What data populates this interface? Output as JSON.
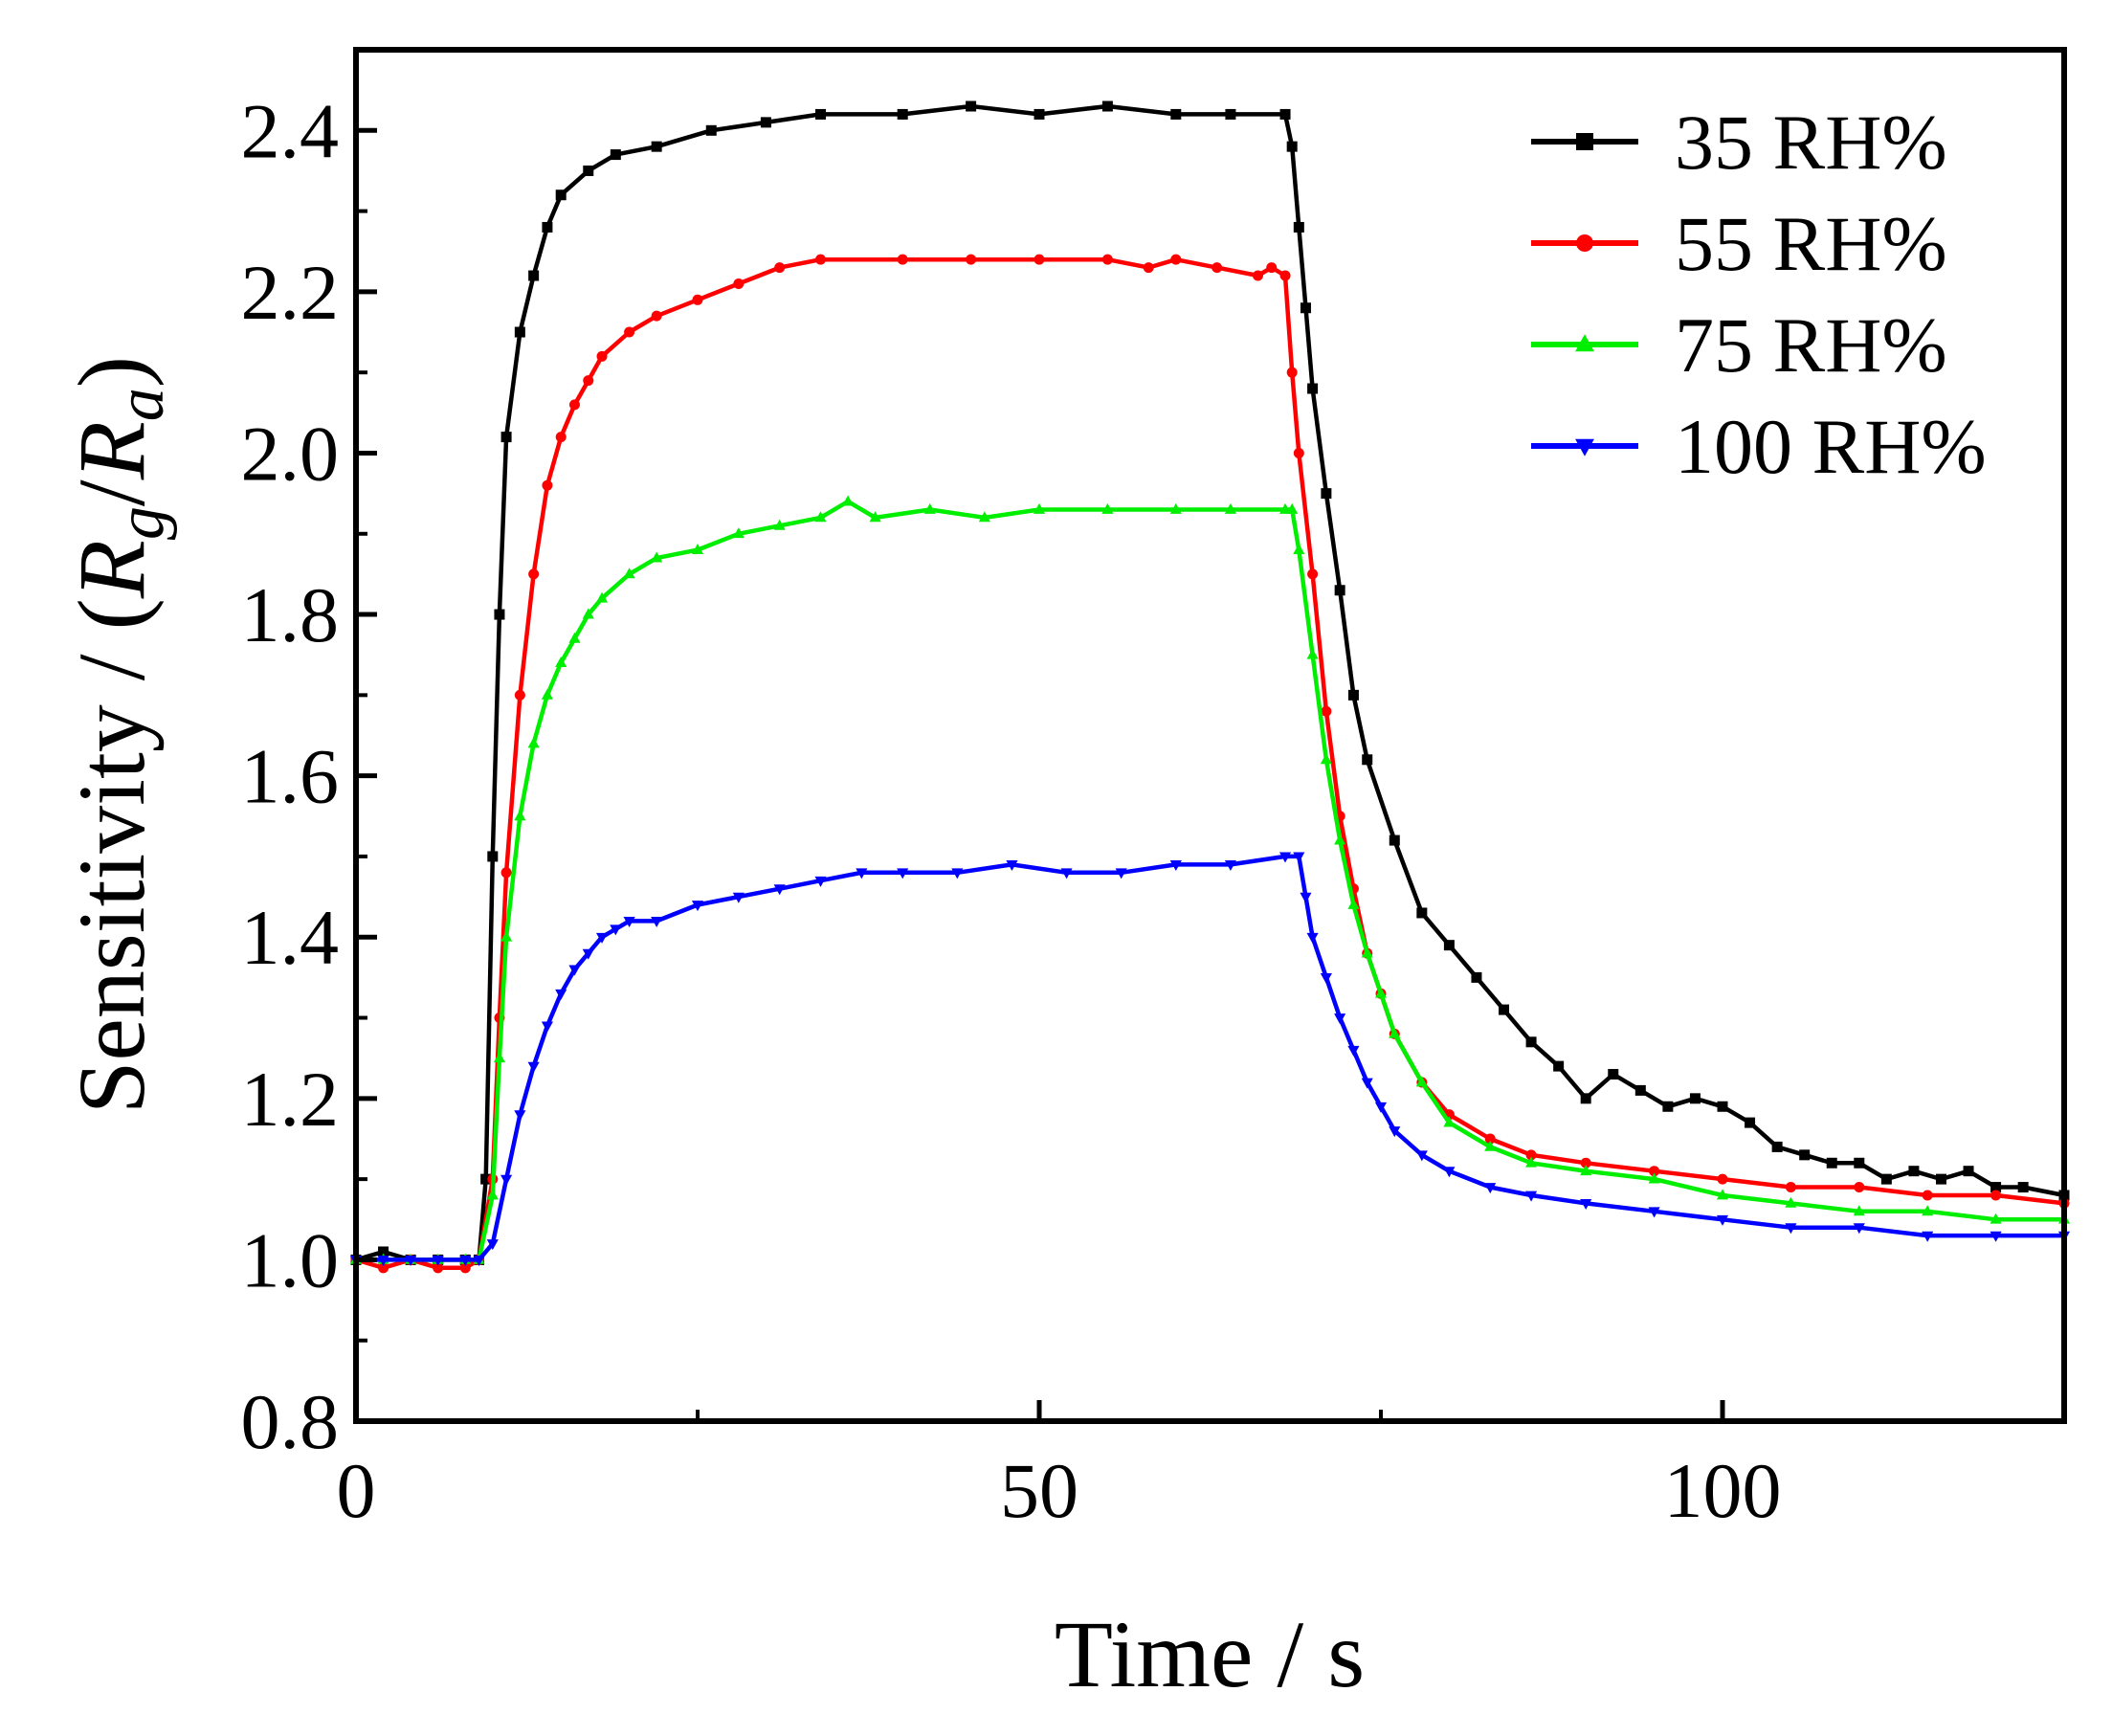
{
  "chart_data": {
    "type": "line",
    "title": "",
    "xlabel": "Time / s",
    "ylabel": {
      "prefix": "Sensitivity / (",
      "r1": "R",
      "sub1": "g",
      "slash": "/",
      "r2": "R",
      "sub2": "a",
      "suffix": ")"
    },
    "xlim": [
      0,
      125
    ],
    "ylim": [
      0.8,
      2.5
    ],
    "xticks": [
      "0",
      "50",
      "100"
    ],
    "xtick_values": [
      0,
      50,
      100
    ],
    "yticks": [
      "0.8",
      "1.0",
      "1.2",
      "1.4",
      "1.6",
      "1.8",
      "2.0",
      "2.2",
      "2.4"
    ],
    "ytick_values": [
      0.8,
      1.0,
      1.2,
      1.4,
      1.6,
      1.8,
      2.0,
      2.2,
      2.4
    ],
    "legend_position": "top-right",
    "series": [
      {
        "name": "35 RH%",
        "color": "#000000",
        "marker": "square",
        "x": [
          0,
          2,
          4,
          6,
          8,
          9,
          9.5,
          10,
          10.5,
          11,
          12,
          13,
          14,
          15,
          17,
          19,
          22,
          26,
          30,
          34,
          40,
          45,
          50,
          55,
          60,
          64,
          68,
          68.5,
          69,
          69.5,
          70,
          71,
          72,
          73,
          74,
          76,
          78,
          80,
          82,
          84,
          86,
          88,
          90,
          92,
          94,
          96,
          98,
          100,
          102,
          104,
          106,
          108,
          110,
          112,
          114,
          116,
          118,
          120,
          122,
          125
        ],
        "y": [
          1.0,
          1.01,
          1.0,
          1.0,
          1.0,
          1.0,
          1.1,
          1.5,
          1.8,
          2.02,
          2.15,
          2.22,
          2.28,
          2.32,
          2.35,
          2.37,
          2.38,
          2.4,
          2.41,
          2.42,
          2.42,
          2.43,
          2.42,
          2.43,
          2.42,
          2.42,
          2.42,
          2.38,
          2.28,
          2.18,
          2.08,
          1.95,
          1.83,
          1.7,
          1.62,
          1.52,
          1.43,
          1.39,
          1.35,
          1.31,
          1.27,
          1.24,
          1.2,
          1.23,
          1.21,
          1.19,
          1.2,
          1.19,
          1.17,
          1.14,
          1.13,
          1.12,
          1.12,
          1.1,
          1.11,
          1.1,
          1.11,
          1.09,
          1.09,
          1.08
        ]
      },
      {
        "name": "55 RH%",
        "color": "#ff0000",
        "marker": "circle",
        "x": [
          0,
          2,
          4,
          6,
          8,
          9,
          10,
          10.5,
          11,
          12,
          13,
          14,
          15,
          16,
          17,
          18,
          20,
          22,
          25,
          28,
          31,
          34,
          40,
          45,
          50,
          55,
          58,
          60,
          63,
          66,
          67,
          68,
          68.5,
          69,
          70,
          71,
          72,
          73,
          74,
          75,
          76,
          78,
          80,
          83,
          86,
          90,
          95,
          100,
          105,
          110,
          115,
          120,
          125
        ],
        "y": [
          1.0,
          0.99,
          1.0,
          0.99,
          0.99,
          1.0,
          1.1,
          1.3,
          1.48,
          1.7,
          1.85,
          1.96,
          2.02,
          2.06,
          2.09,
          2.12,
          2.15,
          2.17,
          2.19,
          2.21,
          2.23,
          2.24,
          2.24,
          2.24,
          2.24,
          2.24,
          2.23,
          2.24,
          2.23,
          2.22,
          2.23,
          2.22,
          2.1,
          2.0,
          1.85,
          1.68,
          1.55,
          1.46,
          1.38,
          1.33,
          1.28,
          1.22,
          1.18,
          1.15,
          1.13,
          1.12,
          1.11,
          1.1,
          1.09,
          1.09,
          1.08,
          1.08,
          1.07
        ]
      },
      {
        "name": "75 RH%",
        "color": "#00ee00",
        "marker": "triangle-up",
        "x": [
          0,
          2,
          4,
          6,
          8,
          9,
          10,
          10.5,
          11,
          12,
          13,
          14,
          15,
          16,
          17,
          18,
          20,
          22,
          25,
          28,
          31,
          34,
          36,
          38,
          42,
          46,
          50,
          55,
          60,
          64,
          68,
          68.5,
          69,
          70,
          71,
          72,
          73,
          74,
          75,
          76,
          78,
          80,
          83,
          86,
          90,
          95,
          100,
          105,
          110,
          115,
          120,
          125
        ],
        "y": [
          1.0,
          1.0,
          1.0,
          1.0,
          1.0,
          1.0,
          1.08,
          1.25,
          1.4,
          1.55,
          1.64,
          1.7,
          1.74,
          1.77,
          1.8,
          1.82,
          1.85,
          1.87,
          1.88,
          1.9,
          1.91,
          1.92,
          1.94,
          1.92,
          1.93,
          1.92,
          1.93,
          1.93,
          1.93,
          1.93,
          1.93,
          1.93,
          1.88,
          1.75,
          1.62,
          1.52,
          1.44,
          1.38,
          1.33,
          1.28,
          1.22,
          1.17,
          1.14,
          1.12,
          1.11,
          1.1,
          1.08,
          1.07,
          1.06,
          1.06,
          1.05,
          1.05
        ]
      },
      {
        "name": "100 RH%",
        "color": "#0000ff",
        "marker": "triangle-down",
        "x": [
          0,
          2,
          4,
          6,
          8,
          9,
          10,
          11,
          12,
          13,
          14,
          15,
          16,
          17,
          18,
          19,
          20,
          22,
          25,
          28,
          31,
          34,
          37,
          40,
          44,
          48,
          52,
          56,
          60,
          64,
          68,
          69,
          69.5,
          70,
          71,
          72,
          73,
          74,
          75,
          76,
          78,
          80,
          83,
          86,
          90,
          95,
          100,
          105,
          110,
          115,
          120,
          125
        ],
        "y": [
          1.0,
          1.0,
          1.0,
          1.0,
          1.0,
          1.0,
          1.02,
          1.1,
          1.18,
          1.24,
          1.29,
          1.33,
          1.36,
          1.38,
          1.4,
          1.41,
          1.42,
          1.42,
          1.44,
          1.45,
          1.46,
          1.47,
          1.48,
          1.48,
          1.48,
          1.49,
          1.48,
          1.48,
          1.49,
          1.49,
          1.5,
          1.5,
          1.45,
          1.4,
          1.35,
          1.3,
          1.26,
          1.22,
          1.19,
          1.16,
          1.13,
          1.11,
          1.09,
          1.08,
          1.07,
          1.06,
          1.05,
          1.04,
          1.04,
          1.03,
          1.03,
          1.03
        ]
      }
    ]
  }
}
